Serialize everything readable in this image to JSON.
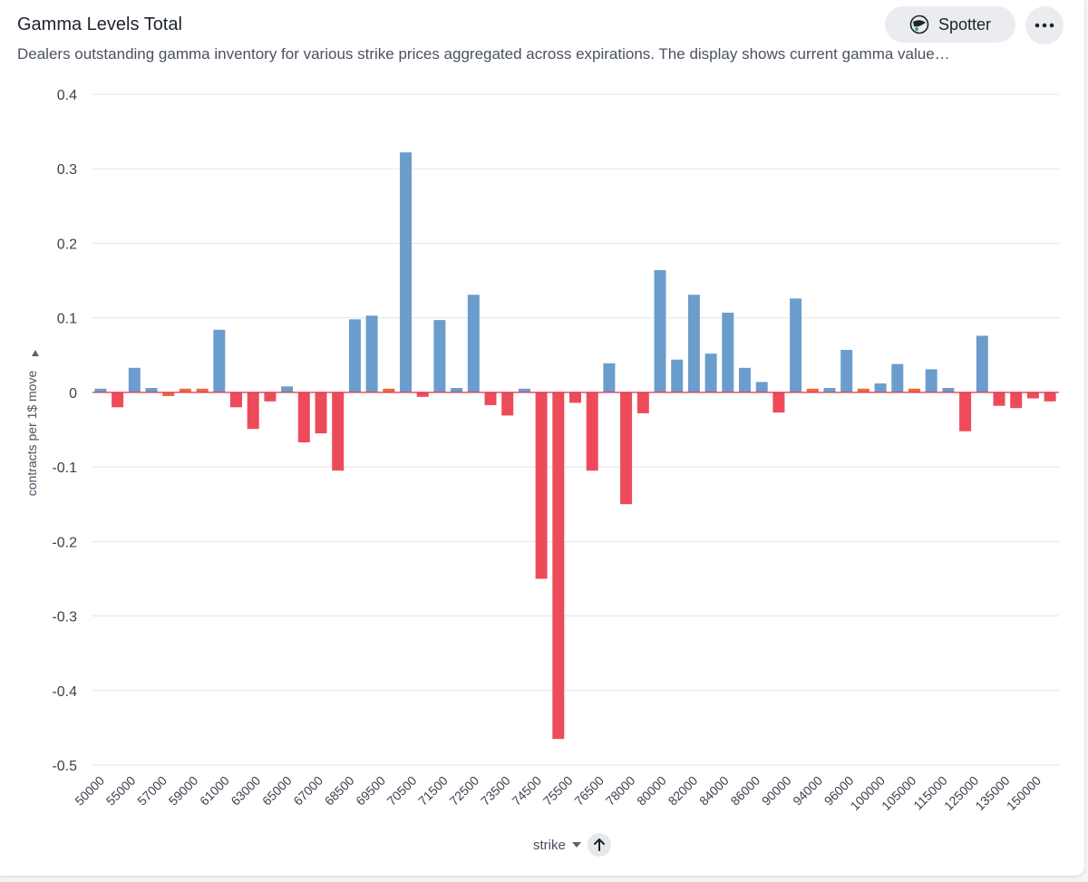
{
  "header": {
    "title": "Gamma Levels Total",
    "description": "Dealers outstanding gamma inventory for various strike prices aggregated across expirations. The display shows current gamma value…",
    "spotter_label": "Spotter",
    "spotter_icon": "spotter-icon",
    "more_icon": "more-horizontal-icon"
  },
  "axis": {
    "x_label": "strike",
    "x_sort_icon": "caret-down-icon",
    "x_arrow_icon": "arrow-up-icon",
    "y_label": "contracts per 1$ move"
  },
  "colors": {
    "positive": "#6b9dcc",
    "negative": "#ee4b5a",
    "small": "#ec6a3c",
    "zero_line": "#e0334a",
    "grid": "#e3e5e9"
  },
  "chart_data": {
    "type": "bar",
    "title": "",
    "xlabel": "strike",
    "ylabel": "contracts per 1$ move",
    "ylim": [
      -0.5,
      0.4
    ],
    "yticks": [
      "0.4",
      "0.3",
      "0.2",
      "0.1",
      "0",
      "-0.1",
      "-0.2",
      "-0.3",
      "-0.4",
      "-0.5"
    ],
    "xtick_labels": [
      "50000",
      "55000",
      "57000",
      "59000",
      "61000",
      "63000",
      "65000",
      "67000",
      "68500",
      "69500",
      "70500",
      "71500",
      "72500",
      "73500",
      "74500",
      "75500",
      "76500",
      "78000",
      "80000",
      "82000",
      "84000",
      "86000",
      "90000",
      "94000",
      "96000",
      "100000",
      "105000",
      "115000",
      "125000",
      "135000",
      "150000"
    ],
    "values": [
      0.005,
      -0.02,
      0.033,
      0.006,
      -0.005,
      0.005,
      0.005,
      0.084,
      -0.02,
      -0.049,
      -0.012,
      0.008,
      -0.067,
      -0.055,
      -0.105,
      0.098,
      0.103,
      0.005,
      0.322,
      -0.006,
      0.097,
      0.006,
      0.131,
      -0.017,
      -0.031,
      0.005,
      -0.25,
      -0.465,
      -0.014,
      -0.105,
      0.039,
      -0.15,
      -0.028,
      0.164,
      0.044,
      0.131,
      0.052,
      0.107,
      0.033,
      0.014,
      -0.027,
      0.126,
      0.005,
      0.006,
      0.057,
      0.005,
      0.012,
      0.038,
      0.005,
      0.031,
      0.006,
      -0.052,
      0.076,
      -0.018,
      -0.021,
      -0.008,
      -0.012
    ],
    "small_bars": [
      4,
      5,
      6,
      17,
      42,
      45,
      48
    ],
    "grid": true
  }
}
